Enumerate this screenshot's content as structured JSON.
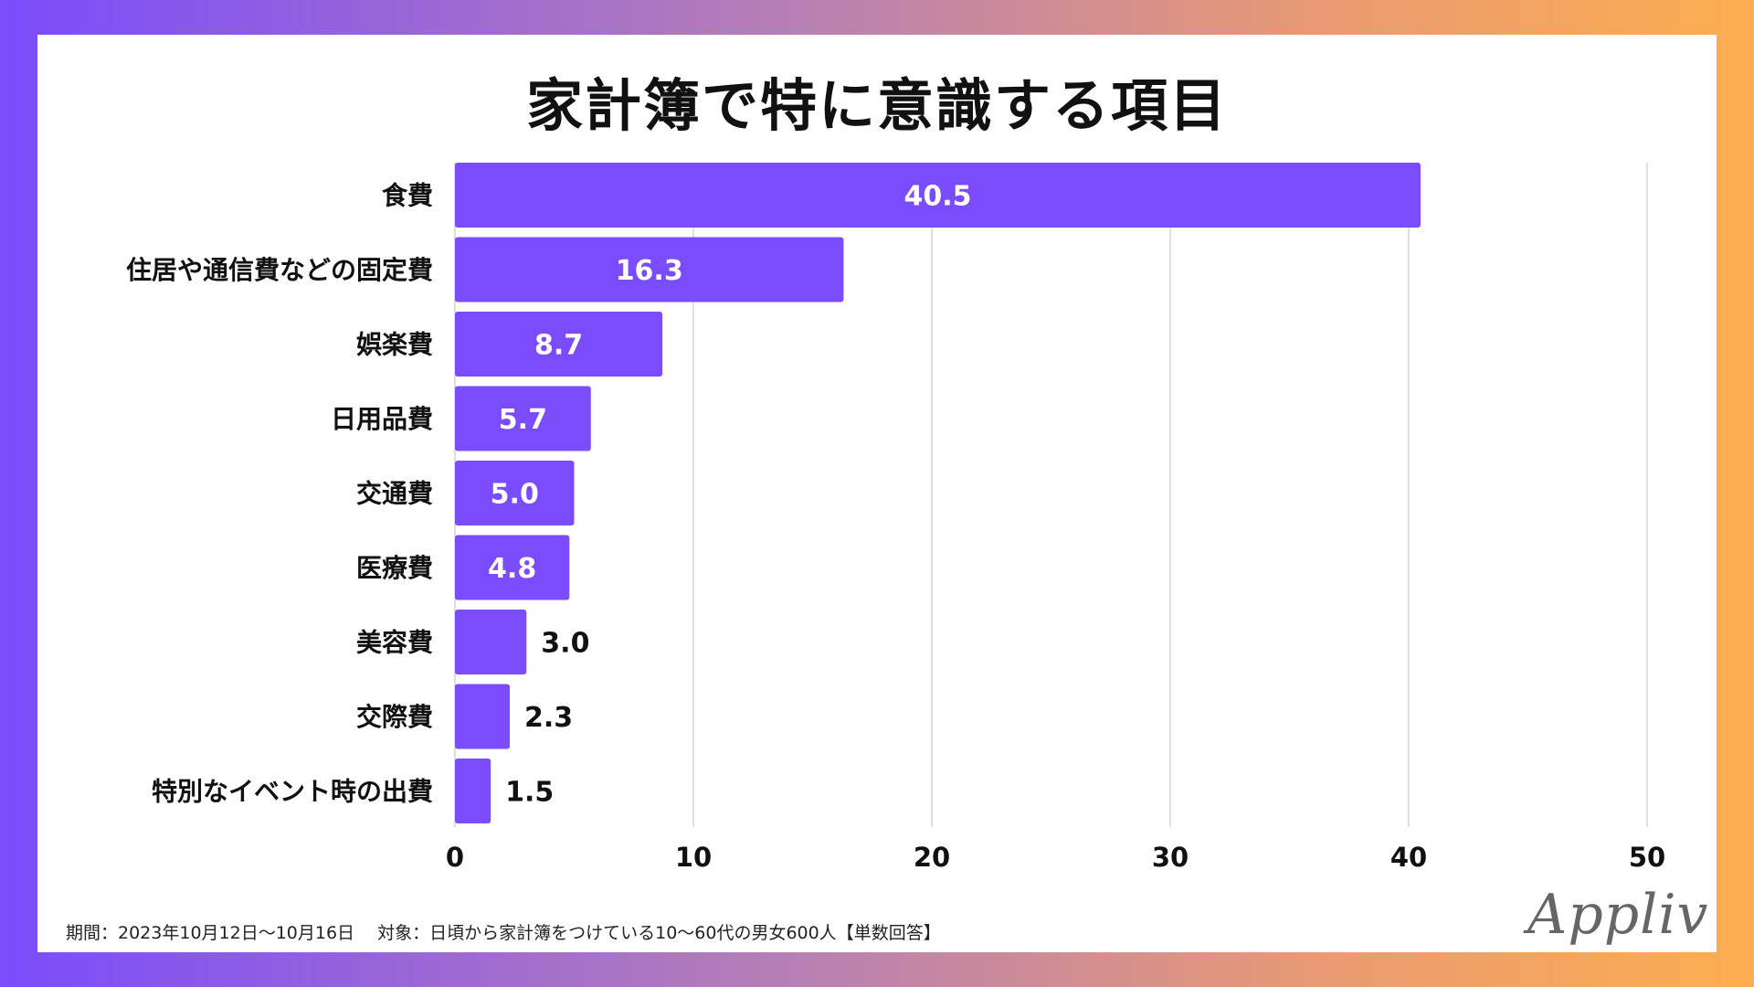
{
  "chart_data": {
    "type": "bar",
    "orientation": "horizontal",
    "title": "家計簿で特に意識する項目",
    "categories": [
      "食費",
      "住居や通信費などの固定費",
      "娯楽費",
      "日用品費",
      "交通費",
      "医療費",
      "美容費",
      "交際費",
      "特別なイベント時の出費"
    ],
    "values": [
      40.5,
      16.3,
      8.7,
      5.7,
      5.0,
      4.8,
      3.0,
      2.3,
      1.5
    ],
    "value_labels": [
      "40.5",
      "16.3",
      "8.7",
      "5.7",
      "5.0",
      "4.8",
      "3.0",
      "2.3",
      "1.5"
    ],
    "xticks": [
      0,
      10,
      20,
      30,
      40,
      50
    ],
    "xlim": [
      0,
      50
    ],
    "xlabel": "",
    "ylabel": "",
    "grid": true,
    "bar_color": "#7a4cfb"
  },
  "footnote": "期間：2023年10月12日〜10月16日　 対象：日頃から家計簿をつけている10〜60代の男女600人【単数回答】",
  "logo": "Appliv"
}
